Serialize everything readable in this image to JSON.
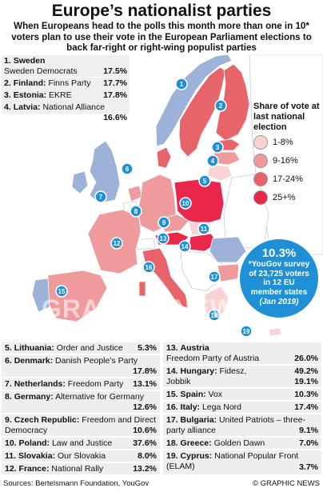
{
  "title": "Europe’s nationalist parties",
  "subtitle": "When Europeans head to the polls this month more than one in 10* voters plan to use their vote in the European Parliament elections to back far-right or right-wing populist parties",
  "legend": {
    "title": "Share of vote at last national election",
    "items": [
      {
        "label": "1-8%",
        "color": "#f9d3d3"
      },
      {
        "label": "9-16%",
        "color": "#ef9a9c"
      },
      {
        "label": "17-24%",
        "color": "#e8646b"
      },
      {
        "label": "25+%",
        "color": "#e8274b"
      }
    ]
  },
  "colors": {
    "no_data": "#9cb2d9",
    "marker": "#1f90d6",
    "sea": "#ffffff"
  },
  "callout": {
    "value": "10.3%",
    "line1": "*YouGov survey",
    "line2": "of 23,725 voters",
    "line3": "in 12 EU",
    "line4": "member states",
    "date": "(Jan 2019)"
  },
  "watermark": "GRAPHIC NEWS",
  "entries": [
    {
      "num": "1.",
      "country": "Sweden",
      "party": "Sweden Democrats",
      "pct": "17.5%"
    },
    {
      "num": "2.",
      "country": "Finland:",
      "party": "Finns Party",
      "pct": "17.7%"
    },
    {
      "num": "3.",
      "country": "Estonia:",
      "party": "EKRE",
      "pct": "17.8%"
    },
    {
      "num": "4.",
      "country": "Latvia:",
      "party": "National Alliance",
      "pct": "16.6%"
    },
    {
      "num": "5.",
      "country": "Lithuania:",
      "party": "Order and Justice",
      "pct": "5.3%"
    },
    {
      "num": "6.",
      "country": "Denmark:",
      "party": "Danish People’s Party",
      "pct": "17.8%"
    },
    {
      "num": "7.",
      "country": "Netherlands:",
      "party": "Freedom Party",
      "pct": "13.1%"
    },
    {
      "num": "8.",
      "country": "Germany:",
      "party": "Alternative for Germany",
      "pct": "12.6%"
    },
    {
      "num": "9.",
      "country": "Czech Republic:",
      "party": "Freedom and Direct Democracy",
      "pct": "10.6%"
    },
    {
      "num": "10.",
      "country": "Poland:",
      "party": "Law and Justice",
      "pct": "37.6%"
    },
    {
      "num": "11.",
      "country": "Slovakia:",
      "party": "Our Slovakia",
      "pct": "8.0%"
    },
    {
      "num": "12.",
      "country": "France:",
      "party": "National Rally",
      "pct": "13.2%"
    },
    {
      "num": "13.",
      "country": "Austria",
      "party": "Freedom Party of Austria",
      "pct": "26.0%"
    },
    {
      "num": "14.",
      "country": "Hungary:",
      "party": "Fidesz,",
      "pct": "49.2%",
      "party2": "Jobbik",
      "pct2": "19.1%"
    },
    {
      "num": "15.",
      "country": "Spain:",
      "party": "Vox",
      "pct": "10.3%"
    },
    {
      "num": "16.",
      "country": "Italy:",
      "party": "Lega Nord",
      "pct": "17.4%"
    },
    {
      "num": "17.",
      "country": "Bulgaria:",
      "party": "United Patriots – three-party alliance",
      "pct": "9.1%"
    },
    {
      "num": "18.",
      "country": "Greece:",
      "party": "Golden Dawn",
      "pct": "7.0%"
    },
    {
      "num": "19.",
      "country": "Cyprus:",
      "party": "National Popular Front (ELAM)",
      "pct": "3.7%"
    }
  ],
  "map_numbers": [
    "1",
    "2",
    "3",
    "4",
    "5",
    "6",
    "7",
    "8",
    "9",
    "10",
    "11",
    "12",
    "13",
    "14",
    "15",
    "16",
    "17",
    "18",
    "19"
  ],
  "footer": {
    "sources": "Sources: Bertelsmann Foundation, YouGov",
    "credit": "© GRAPHIC NEWS"
  }
}
